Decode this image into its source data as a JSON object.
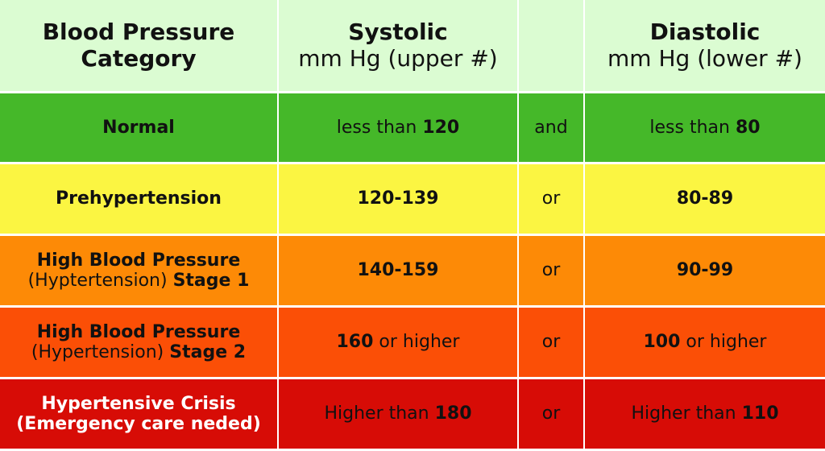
{
  "header": {
    "category": [
      "Blood Pressure",
      "Category"
    ],
    "systolic": {
      "title": "Systolic",
      "sub": "mm Hg (upper #)"
    },
    "diastolic": {
      "title": "Diastolic",
      "sub": "mm Hg (lower #)"
    },
    "color": "#dbfcd2"
  },
  "rows": [
    {
      "category_line1": "Normal",
      "category_line2_thin": "",
      "category_line2_bold": "",
      "systolic_prefix": "less than ",
      "systolic_value": "120",
      "systolic_suffix": "",
      "joiner": "and",
      "diastolic_prefix": "less than ",
      "diastolic_value": "80",
      "diastolic_suffix": "",
      "color": "#45b829"
    },
    {
      "category_line1": "Prehypertension",
      "category_line2_thin": "",
      "category_line2_bold": "",
      "systolic_prefix": "",
      "systolic_value": "120-139",
      "systolic_suffix": "",
      "joiner": "or",
      "diastolic_prefix": "",
      "diastolic_value": "80-89",
      "diastolic_suffix": "",
      "color": "#fbf542"
    },
    {
      "category_line1": "High Blood Pressure",
      "category_line2_thin": "(Hyptertension) ",
      "category_line2_bold": "Stage 1",
      "systolic_prefix": "",
      "systolic_value": "140-159",
      "systolic_suffix": "",
      "joiner": "or",
      "diastolic_prefix": "",
      "diastolic_value": "90-99",
      "diastolic_suffix": "",
      "color": "#fd8a06"
    },
    {
      "category_line1": "High Blood Pressure",
      "category_line2_thin": "(Hypertension) ",
      "category_line2_bold": "Stage 2",
      "systolic_prefix": "",
      "systolic_value": "160",
      "systolic_suffix": " or higher",
      "joiner": "or",
      "diastolic_prefix": "",
      "diastolic_value": "100",
      "diastolic_suffix": " or higher",
      "color": "#fb4f06"
    },
    {
      "category_line1": "Hypertensive Crisis",
      "category_line2_thin": "",
      "category_line2_bold": "(Emergency care neded)",
      "systolic_prefix": "Higher than ",
      "systolic_value": "180",
      "systolic_suffix": "",
      "joiner": "or",
      "diastolic_prefix": "Higher than ",
      "diastolic_value": "110",
      "diastolic_suffix": "",
      "color": "#d70c06"
    }
  ]
}
